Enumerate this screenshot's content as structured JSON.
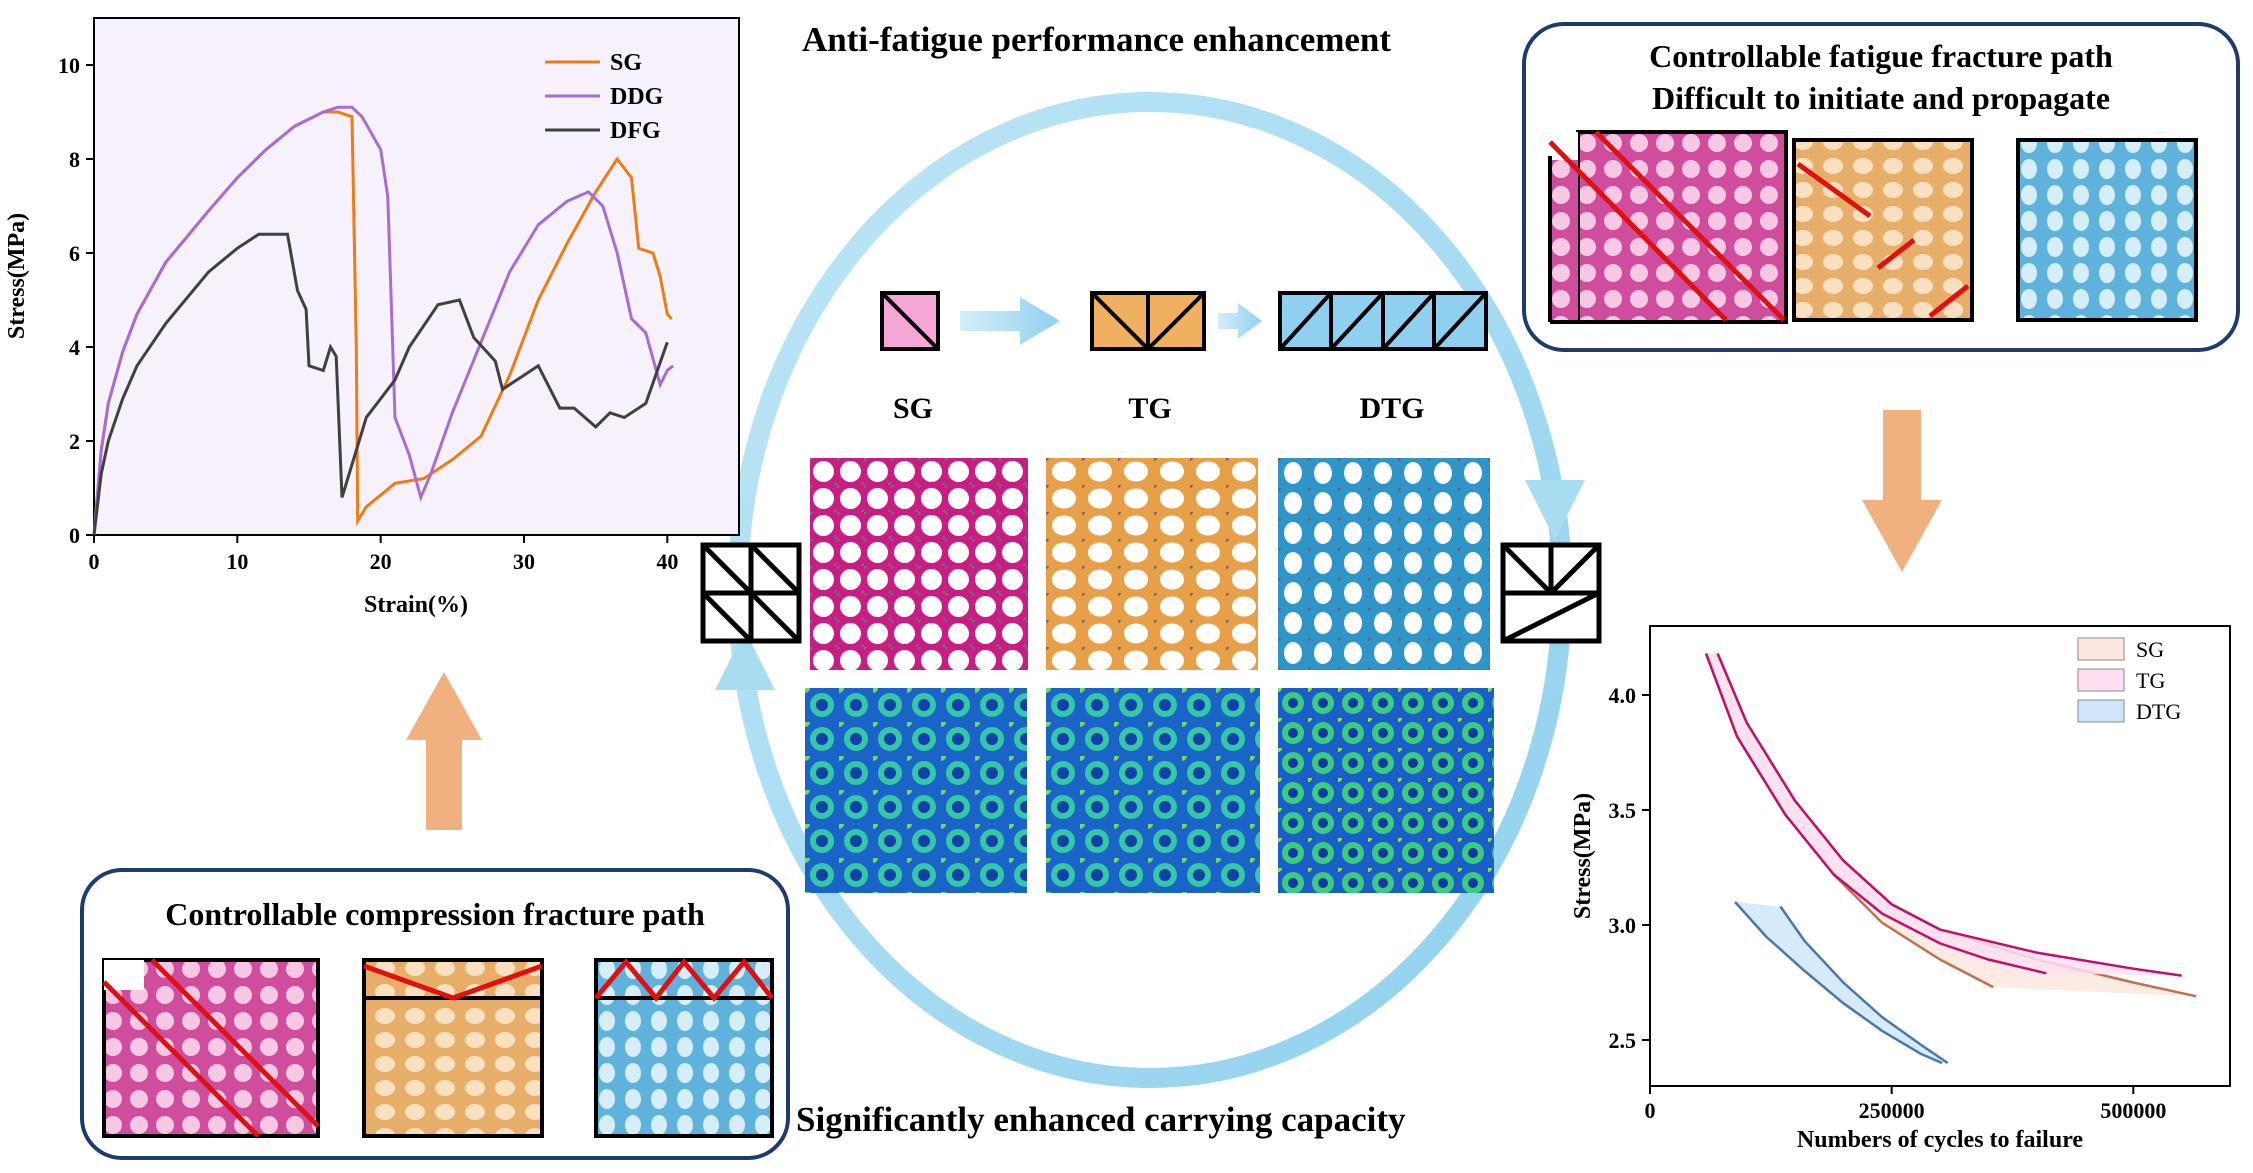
{
  "headlines": {
    "top": "Anti-fatigue performance enhancement",
    "bottom": "Significantly enhanced carrying capacity"
  },
  "top_right_box": {
    "line1": "Controllable fatigue fracture path",
    "line2": "Difficult to initiate and propagate"
  },
  "bottom_left_box": {
    "title": "Controllable compression fracture path"
  },
  "lattice_labels": [
    "SG",
    "TG",
    "DTG"
  ],
  "colors": {
    "sg": "#d63c96",
    "tg": "#e8a860",
    "dtg": "#3a9bd0",
    "sg_light": "#f5a6d6",
    "tg_light": "#f0b060",
    "dtg_light": "#8fd0f0",
    "box_border": "#1f3a6e",
    "arrow": "#f0b080",
    "cycle_arrow": "#a8dcf0",
    "crack": "#e01010"
  },
  "chart_data": [
    {
      "type": "line",
      "xlabel": "Strain(%)",
      "ylabel": "Stress(MPa)",
      "xlim": [
        0,
        45
      ],
      "ylim": [
        0,
        11
      ],
      "xticks": [
        0,
        10,
        20,
        30,
        40
      ],
      "yticks": [
        0,
        2,
        4,
        6,
        8,
        10
      ],
      "legend": "top-right",
      "series": [
        {
          "name": "SG",
          "color": "#f07a14",
          "x": [
            0,
            0.5,
            1,
            2,
            3,
            5,
            8,
            10,
            12,
            14,
            16,
            17,
            18,
            18.3,
            18.4,
            19,
            21,
            23,
            25,
            27,
            29,
            31,
            33,
            35,
            36.5,
            37.5,
            38,
            39,
            39.5,
            40,
            40.3
          ],
          "y": [
            0,
            1.8,
            2.8,
            3.9,
            4.7,
            5.8,
            6.9,
            7.6,
            8.2,
            8.7,
            9.0,
            9.0,
            8.9,
            4.0,
            0.3,
            0.6,
            1.1,
            1.2,
            1.6,
            2.1,
            3.4,
            5.0,
            6.2,
            7.3,
            8.0,
            7.6,
            6.1,
            6.0,
            5.5,
            4.7,
            4.6
          ]
        },
        {
          "name": "DDG",
          "color": "#a66dd2",
          "x": [
            0,
            0.5,
            1,
            2,
            3,
            5,
            8,
            10,
            12,
            14,
            16,
            17,
            18,
            18.7,
            20,
            20.5,
            21,
            22,
            22.8,
            23.5,
            25,
            27,
            29,
            31,
            33,
            34.5,
            35.5,
            36.5,
            37.5,
            38.5,
            39.5,
            40,
            40.4
          ],
          "y": [
            0,
            1.8,
            2.8,
            3.9,
            4.7,
            5.8,
            6.9,
            7.6,
            8.2,
            8.7,
            9.0,
            9.1,
            9.1,
            8.9,
            8.2,
            7.2,
            2.5,
            1.7,
            0.8,
            1.3,
            2.6,
            4.1,
            5.6,
            6.6,
            7.1,
            7.3,
            7.0,
            6.0,
            4.6,
            4.3,
            3.2,
            3.5,
            3.6
          ]
        },
        {
          "name": "DFG",
          "color": "#404040",
          "x": [
            0,
            0.5,
            1,
            2,
            3,
            5,
            8,
            10,
            11.5,
            13.5,
            14.2,
            14.8,
            15,
            16,
            16.5,
            16.9,
            17.3,
            19,
            21,
            22,
            24,
            25.5,
            26.5,
            28,
            28.5,
            30,
            31,
            32.5,
            33.5,
            35,
            36,
            37,
            37.5,
            38.5,
            40
          ],
          "y": [
            0,
            1.3,
            2.0,
            2.9,
            3.6,
            4.5,
            5.6,
            6.1,
            6.4,
            6.4,
            5.2,
            4.8,
            3.6,
            3.5,
            4.0,
            3.8,
            0.8,
            2.5,
            3.3,
            4.0,
            4.9,
            5.0,
            4.2,
            3.7,
            3.1,
            3.4,
            3.6,
            2.7,
            2.7,
            2.3,
            2.6,
            2.5,
            2.6,
            2.8,
            4.1
          ]
        }
      ]
    },
    {
      "type": "area",
      "xlabel": "Numbers of cycles to failure",
      "ylabel": "Stress(MPa)",
      "xlim": [
        0,
        600000
      ],
      "ylim": [
        2.3,
        4.3
      ],
      "xticks": [
        0,
        250000,
        500000
      ],
      "yticks": [
        2.5,
        3.0,
        3.5,
        4.0
      ],
      "legend": "top-right",
      "series": [
        {
          "name": "SG",
          "color": "#c07050",
          "fill": "#fce8e0",
          "upper": {
            "x": [
              70000,
              100000,
              150000,
              200000,
              250000,
              300000,
              400000,
              500000,
              565000
            ],
            "y": [
              4.18,
              3.88,
              3.54,
              3.28,
              3.09,
              2.98,
              2.85,
              2.75,
              2.69
            ]
          },
          "lower": {
            "x": [
              58000,
              90000,
              140000,
              190000,
              240000,
              300000,
              355000
            ],
            "y": [
              4.18,
              3.82,
              3.48,
              3.22,
              3.01,
              2.85,
              2.73
            ]
          }
        },
        {
          "name": "TG",
          "color": "#c0106c",
          "fill": "#fcdff0",
          "upper": {
            "x": [
              70000,
              100000,
              150000,
              200000,
              250000,
              300000,
              400000,
              500000,
              550000
            ],
            "y": [
              4.18,
              3.88,
              3.54,
              3.28,
              3.09,
              2.98,
              2.88,
              2.81,
              2.78
            ]
          },
          "lower": {
            "x": [
              58000,
              90000,
              140000,
              190000,
              240000,
              300000,
              350000,
              410000
            ],
            "y": [
              4.18,
              3.82,
              3.48,
              3.22,
              3.05,
              2.92,
              2.85,
              2.79
            ]
          }
        },
        {
          "name": "DTG",
          "color": "#4a78a8",
          "fill": "#cfe6f8",
          "upper": {
            "x": [
              135000,
              160000,
              200000,
              240000,
              280000,
              308000
            ],
            "y": [
              3.08,
              2.93,
              2.75,
              2.6,
              2.48,
              2.4
            ]
          },
          "lower": {
            "x": [
              88000,
              120000,
              160000,
              200000,
              240000,
              280000,
              302000
            ],
            "y": [
              3.1,
              2.95,
              2.8,
              2.66,
              2.54,
              2.44,
              2.4
            ]
          }
        }
      ]
    }
  ]
}
